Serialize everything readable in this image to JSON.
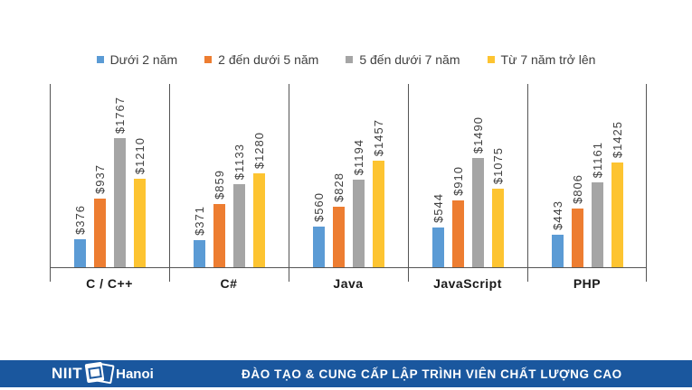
{
  "chart_data": {
    "type": "bar",
    "title": "",
    "categories": [
      "C / C++",
      "C#",
      "Java",
      "JavaScript",
      "PHP"
    ],
    "series": [
      {
        "name": "Dưới 2 năm",
        "color": "#5B9BD5",
        "values": [
          376,
          371,
          560,
          544,
          443
        ]
      },
      {
        "name": "2 đến dưới 5 năm",
        "color": "#ED7D31",
        "values": [
          937,
          859,
          828,
          910,
          806
        ]
      },
      {
        "name": "5 đến dưới 7 năm",
        "color": "#A5A5A5",
        "values": [
          1767,
          1133,
          1194,
          1490,
          1161
        ]
      },
      {
        "name": "Từ 7 năm trở lên",
        "color": "#FDC431",
        "values": [
          1210,
          1280,
          1457,
          1075,
          1425
        ]
      }
    ],
    "value_prefix": "$",
    "value_labels_rotated": true,
    "ylim": [
      0,
      2500
    ],
    "legend_position": "top",
    "grid": false,
    "axis_color": "#555555"
  },
  "footer": {
    "logo_niit": "NIIT",
    "logo_hanoi": "Hanoi",
    "tagline": "ĐÀO TẠO & CUNG CẤP LẬP TRÌNH VIÊN CHẤT LƯỢNG CAO",
    "background": "#1A579E"
  }
}
